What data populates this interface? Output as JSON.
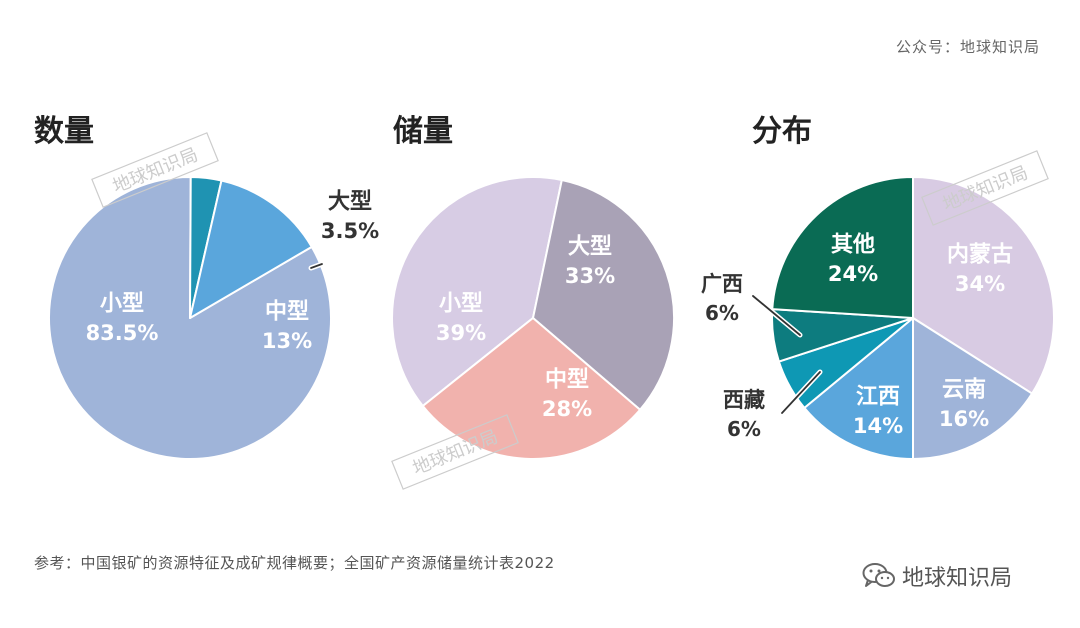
{
  "header": {
    "credit": "公众号：地球知识局"
  },
  "watermark": "地球知识局",
  "footer": {
    "source": "参考：中国银矿的资源特征及成矿规律概要；全国矿产资源储量统计表2022",
    "brand": "地球知识局",
    "brand_icon": "wechat-icon"
  },
  "colors": {
    "label_light": "#ffffff",
    "label_dark": "#333333",
    "watermark": "#cccccc"
  },
  "chart_data": [
    {
      "type": "pie",
      "title": "数量",
      "slices": [
        {
          "label": "小型",
          "value_text": "83.5%",
          "value": 83.5,
          "color": "#9fb4d9"
        },
        {
          "label": "大型",
          "value_text": "3.5%",
          "value": 3.5,
          "color": "#1f93b2"
        },
        {
          "label": "中型",
          "value_text": "13%",
          "value": 13,
          "color": "#5aa6dc"
        }
      ]
    },
    {
      "type": "pie",
      "title": "储量",
      "slices": [
        {
          "label": "小型",
          "value_text": "39%",
          "value": 39,
          "color": "#d7cce4"
        },
        {
          "label": "大型",
          "value_text": "33%",
          "value": 33,
          "color": "#a9a2b6"
        },
        {
          "label": "中型",
          "value_text": "28%",
          "value": 28,
          "color": "#f1b2ad"
        }
      ]
    },
    {
      "type": "pie",
      "title": "分布",
      "slices": [
        {
          "label": "内蒙古",
          "value_text": "34%",
          "value": 34,
          "color": "#d8cbe3"
        },
        {
          "label": "云南",
          "value_text": "16%",
          "value": 16,
          "color": "#9fb4d9"
        },
        {
          "label": "江西",
          "value_text": "14%",
          "value": 14,
          "color": "#5aa6dc"
        },
        {
          "label": "西藏",
          "value_text": "6%",
          "value": 6,
          "color": "#0e98b4"
        },
        {
          "label": "广西",
          "value_text": "6%",
          "value": 6,
          "color": "#0d7c7f"
        },
        {
          "label": "其他",
          "value_text": "24%",
          "value": 24,
          "color": "#0a6b54"
        }
      ]
    }
  ]
}
